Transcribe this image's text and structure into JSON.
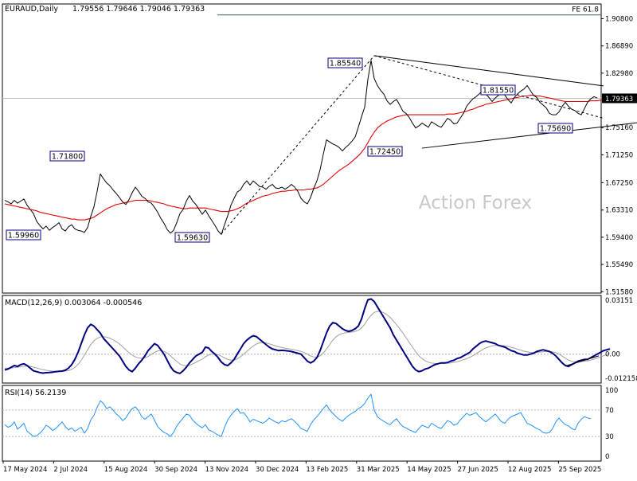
{
  "header": {
    "symbol": "EURAUD,Daily",
    "ohlc": "1.79556 1.79646 1.79046 1.79363"
  },
  "watermark": "Action Forex",
  "colors": {
    "price": "#000000",
    "ma": "#e00000",
    "macd": "#000080",
    "signal": "#a0a0a0",
    "rsi": "#1e90ff",
    "trend": "#000000",
    "badge_border": "#000080",
    "watermark": "#c8c8c8",
    "current_bg": "#000000",
    "current_text": "#ffffff",
    "fe_line": "#406060",
    "grid_level": "#c0c0c0"
  },
  "chart_data": [
    {
      "type": "line",
      "name": "price-panel",
      "ylim": [
        1.5138,
        1.9292
      ],
      "y_ticks": [
        "1.90800",
        "1.86890",
        "1.82980",
        "1.79363",
        "1.75160",
        "1.71250",
        "1.67250",
        "1.63310",
        "1.59400",
        "1.55490",
        "1.51580"
      ],
      "x_ticks": [
        "17 May 2024",
        "2 Jul 2024",
        "15 Aug 2024",
        "30 Sep 2024",
        "13 Nov 2024",
        "30 Dec 2024",
        "13 Feb 2025",
        "31 Mar 2025",
        "14 May 2025",
        "27 Jun 2025",
        "12 Aug 2025",
        "25 Sep 2025"
      ],
      "current_price": "1.79363",
      "close": [
        1.647,
        1.645,
        1.642,
        1.647,
        1.643,
        1.646,
        1.649,
        1.64,
        1.634,
        1.628,
        1.617,
        1.611,
        1.606,
        1.61,
        1.604,
        1.608,
        1.611,
        1.615,
        1.606,
        1.603,
        1.609,
        1.612,
        1.606,
        1.604,
        1.603,
        1.601,
        1.608,
        1.624,
        1.638,
        1.66,
        1.685,
        1.678,
        1.672,
        1.668,
        1.662,
        1.657,
        1.651,
        1.645,
        1.641,
        1.648,
        1.658,
        1.666,
        1.66,
        1.653,
        1.65,
        1.645,
        1.643,
        1.637,
        1.63,
        1.621,
        1.614,
        1.605,
        1.6,
        1.604,
        1.615,
        1.628,
        1.634,
        1.646,
        1.654,
        1.646,
        1.641,
        1.634,
        1.627,
        1.633,
        1.625,
        1.618,
        1.611,
        1.603,
        1.598,
        1.612,
        1.625,
        1.64,
        1.65,
        1.659,
        1.662,
        1.67,
        1.675,
        1.669,
        1.675,
        1.671,
        1.667,
        1.666,
        1.663,
        1.667,
        1.67,
        1.665,
        1.664,
        1.666,
        1.663,
        1.666,
        1.67,
        1.666,
        1.66,
        1.65,
        1.645,
        1.642,
        1.651,
        1.664,
        1.675,
        1.691,
        1.713,
        1.734,
        1.731,
        1.728,
        1.726,
        1.723,
        1.718,
        1.723,
        1.727,
        1.732,
        1.738,
        1.752,
        1.767,
        1.781,
        1.821,
        1.848,
        1.822,
        1.812,
        1.805,
        1.8,
        1.79,
        1.785,
        1.789,
        1.792,
        1.784,
        1.775,
        1.772,
        1.766,
        1.758,
        1.751,
        1.754,
        1.758,
        1.755,
        1.752,
        1.76,
        1.757,
        1.754,
        1.752,
        1.758,
        1.765,
        1.762,
        1.757,
        1.758,
        1.765,
        1.772,
        1.782,
        1.788,
        1.793,
        1.796,
        1.8,
        1.805,
        1.8,
        1.795,
        1.789,
        1.794,
        1.798,
        1.805,
        1.798,
        1.792,
        1.787,
        1.795,
        1.8,
        1.804,
        1.807,
        1.812,
        1.805,
        1.798,
        1.795,
        1.788,
        1.784,
        1.78,
        1.772,
        1.77,
        1.77,
        1.774,
        1.782,
        1.788,
        1.782,
        1.778,
        1.776,
        1.772,
        1.77,
        1.779,
        1.788,
        1.793,
        1.796,
        1.794
      ],
      "ma": [
        1.642,
        1.641,
        1.64,
        1.639,
        1.638,
        1.637,
        1.636,
        1.635,
        1.634,
        1.633,
        1.632,
        1.63,
        1.629,
        1.628,
        1.627,
        1.626,
        1.625,
        1.624,
        1.623,
        1.622,
        1.621,
        1.62,
        1.62,
        1.619,
        1.619,
        1.619,
        1.62,
        1.621,
        1.623,
        1.626,
        1.629,
        1.632,
        1.635,
        1.637,
        1.639,
        1.641,
        1.642,
        1.643,
        1.644,
        1.645,
        1.646,
        1.647,
        1.647,
        1.647,
        1.647,
        1.647,
        1.646,
        1.645,
        1.644,
        1.643,
        1.642,
        1.64,
        1.639,
        1.638,
        1.637,
        1.636,
        1.635,
        1.635,
        1.636,
        1.636,
        1.636,
        1.636,
        1.636,
        1.636,
        1.635,
        1.634,
        1.633,
        1.632,
        1.631,
        1.631,
        1.631,
        1.632,
        1.633,
        1.635,
        1.637,
        1.64,
        1.643,
        1.645,
        1.647,
        1.649,
        1.651,
        1.653,
        1.654,
        1.655,
        1.657,
        1.658,
        1.659,
        1.66,
        1.66,
        1.661,
        1.661,
        1.662,
        1.662,
        1.662,
        1.662,
        1.663,
        1.663,
        1.664,
        1.665,
        1.667,
        1.67,
        1.674,
        1.678,
        1.682,
        1.686,
        1.69,
        1.693,
        1.696,
        1.699,
        1.703,
        1.707,
        1.711,
        1.716,
        1.722,
        1.73,
        1.738,
        1.745,
        1.751,
        1.755,
        1.758,
        1.761,
        1.763,
        1.765,
        1.767,
        1.768,
        1.769,
        1.77,
        1.77,
        1.77,
        1.77,
        1.77,
        1.77,
        1.77,
        1.77,
        1.77,
        1.77,
        1.77,
        1.77,
        1.77,
        1.771,
        1.771,
        1.771,
        1.772,
        1.773,
        1.774,
        1.775,
        1.777,
        1.778,
        1.78,
        1.782,
        1.783,
        1.785,
        1.786,
        1.787,
        1.788,
        1.789,
        1.79,
        1.791,
        1.792,
        1.793,
        1.794,
        1.795,
        1.796,
        1.797,
        1.797,
        1.798,
        1.798,
        1.797,
        1.797,
        1.796,
        1.795,
        1.794,
        1.793,
        1.792,
        1.791,
        1.79,
        1.789,
        1.789,
        1.789,
        1.789,
        1.789,
        1.789,
        1.789,
        1.789,
        1.79,
        1.79,
        1.79,
        1.791,
        1.791
      ],
      "annotations": [
        {
          "label": "1.59960",
          "x_index": 0,
          "value": 1.5996
        },
        {
          "label": "1.71800",
          "x_index": 30,
          "value": 1.718
        },
        {
          "label": "1.59630",
          "x_index": 68,
          "value": 1.5963
        },
        {
          "label": "1.85540",
          "x_index": 116,
          "value": 1.8554
        },
        {
          "label": "1.72450",
          "x_index": 131,
          "value": 1.7245
        },
        {
          "label": "1.81550",
          "x_index": 164,
          "value": 1.8155
        },
        {
          "label": "1.75690",
          "x_index": 186,
          "value": 1.7569
        }
      ],
      "trendlines": [
        {
          "style": "solid",
          "from": [
            116,
            1.855
          ],
          "to": [
            188,
            1.8115
          ]
        },
        {
          "style": "solid",
          "from": [
            131,
            1.722
          ],
          "to": [
            199,
            1.7588
          ]
        },
        {
          "style": "dashed",
          "from": [
            68,
            1.599
          ],
          "to": [
            116,
            1.855
          ]
        },
        {
          "style": "dashed",
          "from": [
            116,
            1.855
          ],
          "to": [
            188,
            1.765
          ]
        }
      ],
      "fe_level": {
        "label": "FE 61.8",
        "value": 1.9135
      }
    },
    {
      "type": "line",
      "name": "macd-panel",
      "title": "MACD(12,26,9) 0.003064 -0.000546",
      "ylim": [
        -0.0165,
        0.0335
      ],
      "y_ticks": [
        "0.03151",
        "0.00",
        "-0.012158"
      ],
      "macd": [
        -0.009,
        -0.0085,
        -0.0075,
        -0.0065,
        -0.007,
        -0.006,
        -0.0055,
        -0.0065,
        -0.008,
        -0.0095,
        -0.01,
        -0.0105,
        -0.0108,
        -0.0106,
        -0.0105,
        -0.0103,
        -0.01,
        -0.0098,
        -0.0097,
        -0.0092,
        -0.008,
        -0.006,
        -0.003,
        0.001,
        0.006,
        0.011,
        0.015,
        0.017,
        0.016,
        0.014,
        0.012,
        0.009,
        0.007,
        0.005,
        0.003,
        0.001,
        -0.001,
        -0.004,
        -0.007,
        -0.009,
        -0.01,
        -0.008,
        -0.0055,
        -0.0035,
        -0.001,
        0.002,
        0.004,
        0.006,
        0.005,
        0.0025,
        0.0,
        -0.0035,
        -0.007,
        -0.0095,
        -0.0105,
        -0.011,
        -0.0095,
        -0.0075,
        -0.005,
        -0.003,
        -0.001,
        0.0,
        0.001,
        0.004,
        0.0035,
        0.0015,
        0.0,
        -0.002,
        -0.0045,
        -0.006,
        -0.0065,
        -0.005,
        -0.003,
        0.0,
        0.003,
        0.006,
        0.008,
        0.0095,
        0.0105,
        0.01,
        0.0085,
        0.007,
        0.0055,
        0.004,
        0.003,
        0.0025,
        0.002,
        0.0022,
        0.002,
        0.0018,
        0.0015,
        0.001,
        0.0005,
        0.0,
        -0.002,
        -0.004,
        -0.005,
        -0.004,
        -0.002,
        0.002,
        0.007,
        0.012,
        0.016,
        0.018,
        0.0175,
        0.016,
        0.0145,
        0.0135,
        0.013,
        0.0135,
        0.0145,
        0.016,
        0.02,
        0.026,
        0.031,
        0.0315,
        0.03,
        0.027,
        0.024,
        0.021,
        0.018,
        0.015,
        0.011,
        0.008,
        0.005,
        0.002,
        -0.001,
        -0.004,
        -0.007,
        -0.009,
        -0.01,
        -0.0095,
        -0.0085,
        -0.008,
        -0.007,
        -0.006,
        -0.0055,
        -0.005,
        -0.005,
        -0.0048,
        -0.004,
        -0.0035,
        -0.0025,
        -0.002,
        -0.001,
        0.0,
        0.001,
        0.003,
        0.0045,
        0.006,
        0.007,
        0.0075,
        0.007,
        0.0065,
        0.006,
        0.005,
        0.0045,
        0.004,
        0.003,
        0.002,
        0.0015,
        0.0005,
        0.0,
        -0.0005,
        -0.0005,
        0.0,
        0.0005,
        0.0015,
        0.002,
        0.0025,
        0.002,
        0.0015,
        0.0005,
        -0.001,
        -0.003,
        -0.005,
        -0.0065,
        -0.007,
        -0.006,
        -0.005,
        -0.004,
        -0.0035,
        -0.003,
        -0.003,
        -0.002,
        -0.001,
        0.0,
        0.001,
        0.002,
        0.0025,
        0.003
      ],
      "signal": [
        -0.008,
        -0.008,
        -0.0079,
        -0.0077,
        -0.0075,
        -0.0072,
        -0.0069,
        -0.0068,
        -0.007,
        -0.0074,
        -0.0079,
        -0.0084,
        -0.0089,
        -0.0092,
        -0.0095,
        -0.0097,
        -0.0098,
        -0.0098,
        -0.0098,
        -0.0097,
        -0.0094,
        -0.0087,
        -0.0076,
        -0.0059,
        -0.0035,
        -0.0006,
        0.0025,
        0.0054,
        0.0076,
        0.009,
        0.0098,
        0.01,
        0.0097,
        0.0091,
        0.0082,
        0.0071,
        0.0058,
        0.0042,
        0.0025,
        0.0008,
        -0.0006,
        -0.0016,
        -0.0021,
        -0.0024,
        -0.0021,
        -0.0013,
        -0.0002,
        0.001,
        0.0018,
        0.002,
        0.0016,
        0.0006,
        -0.0009,
        -0.0026,
        -0.0042,
        -0.0056,
        -0.0064,
        -0.0066,
        -0.0063,
        -0.0056,
        -0.0047,
        -0.0037,
        -0.0028,
        -0.0015,
        -0.0005,
        0.0,
        0.0,
        -0.0004,
        -0.0012,
        -0.0022,
        -0.003,
        -0.0034,
        -0.0033,
        -0.0027,
        -0.0015,
        0.0,
        0.0016,
        0.0032,
        0.0047,
        0.0058,
        0.0064,
        0.0066,
        0.0064,
        0.0059,
        0.0053,
        0.0047,
        0.0042,
        0.0038,
        0.0034,
        0.0031,
        0.0028,
        0.0024,
        0.002,
        0.0016,
        0.0009,
        0.0,
        -0.001,
        -0.0016,
        -0.0017,
        -0.001,
        0.0006,
        0.0029,
        0.0055,
        0.008,
        0.0099,
        0.0111,
        0.0118,
        0.0122,
        0.0124,
        0.0126,
        0.013,
        0.0136,
        0.0149,
        0.0171,
        0.0199,
        0.0222,
        0.0238,
        0.0244,
        0.0243,
        0.0236,
        0.0225,
        0.021,
        0.019,
        0.0168,
        0.0145,
        0.012,
        0.0094,
        0.0067,
        0.004,
        0.0014,
        -0.0009,
        -0.0026,
        -0.0038,
        -0.0046,
        -0.0051,
        -0.0053,
        -0.0054,
        -0.0053,
        -0.0053,
        -0.0052,
        -0.005,
        -0.0047,
        -0.0043,
        -0.0038,
        -0.0032,
        -0.0026,
        -0.0018,
        -0.0009,
        0.0002,
        0.0014,
        0.0025,
        0.0035,
        0.0042,
        0.0047,
        0.005,
        0.005,
        0.0049,
        0.0047,
        0.0044,
        0.0039,
        0.0034,
        0.0028,
        0.0023,
        0.0017,
        0.0013,
        0.001,
        0.0009,
        0.001,
        0.0012,
        0.0014,
        0.0015,
        0.0015,
        0.0013,
        0.0008,
        0.0,
        -0.0011,
        -0.0023,
        -0.0034,
        -0.0041,
        -0.0044,
        -0.0044,
        -0.0042,
        -0.004,
        -0.0038,
        -0.0034,
        -0.0029,
        -0.0023,
        -0.0016,
        -0.0009,
        -0.0002,
        0.0004
      ]
    },
    {
      "type": "line",
      "name": "rsi-panel",
      "title": "RSI(14) 56.2139",
      "ylim": [
        0,
        100
      ],
      "y_ticks": [
        "100",
        "70",
        "30",
        "0"
      ],
      "levels": [
        70,
        30
      ],
      "rsi": [
        48,
        44,
        46,
        52,
        41,
        45,
        50,
        38,
        34,
        30,
        31,
        35,
        40,
        47,
        44,
        39,
        42,
        47,
        52,
        45,
        40,
        43,
        38,
        41,
        44,
        35,
        42,
        55,
        62,
        74,
        84,
        80,
        72,
        75,
        70,
        64,
        60,
        54,
        58,
        66,
        72,
        75,
        69,
        60,
        56,
        60,
        64,
        55,
        45,
        40,
        36,
        34,
        30,
        36,
        46,
        52,
        58,
        64,
        62,
        55,
        50,
        46,
        43,
        48,
        40,
        38,
        35,
        32,
        30,
        44,
        55,
        62,
        68,
        72,
        65,
        66,
        60,
        52,
        56,
        54,
        52,
        50,
        53,
        58,
        55,
        52,
        50,
        54,
        52,
        55,
        57,
        53,
        48,
        42,
        40,
        38,
        48,
        55,
        60,
        66,
        72,
        78,
        70,
        65,
        60,
        56,
        53,
        58,
        62,
        65,
        68,
        72,
        75,
        80,
        88,
        94,
        70,
        60,
        56,
        53,
        50,
        48,
        53,
        57,
        50,
        45,
        43,
        40,
        38,
        36,
        42,
        47,
        45,
        43,
        50,
        47,
        44,
        42,
        48,
        54,
        52,
        47,
        49,
        55,
        60,
        65,
        62,
        64,
        66,
        60,
        56,
        52,
        56,
        60,
        64,
        58,
        52,
        50,
        56,
        60,
        62,
        64,
        66,
        58,
        50,
        48,
        45,
        42,
        40,
        36,
        35,
        36,
        42,
        52,
        58,
        52,
        48,
        46,
        42,
        40,
        50,
        56,
        60,
        58,
        57
      ]
    }
  ]
}
